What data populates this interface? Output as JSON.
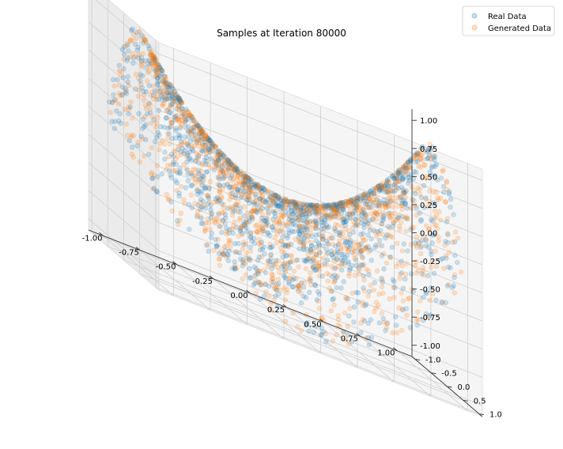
{
  "chart_data": {
    "type": "scatter",
    "title": "Samples at Iteration 80000",
    "xlabel": "",
    "ylabel": "",
    "zlabel": "",
    "xlim": [
      -1.1,
      1.1
    ],
    "ylim": [
      -1.1,
      1.1
    ],
    "zlim": [
      -1.1,
      1.1
    ],
    "x_ticks": [
      "-1.00",
      "-0.75",
      "-0.50",
      "-0.25",
      "0.00",
      "0.25",
      "0.50",
      "0.75",
      "1.00"
    ],
    "y_ticks": [
      "-1.0",
      "-0.5",
      "0.0",
      "0.5",
      "1.0"
    ],
    "z_ticks": [
      "-1.00",
      "-0.75",
      "-0.50",
      "-0.25",
      "0.00",
      "0.25",
      "0.50",
      "0.75",
      "1.00"
    ],
    "grid": true,
    "legend_position": "top-right",
    "series": [
      {
        "name": "Real Data",
        "color": "#1f77b4",
        "alpha": 0.2,
        "marker": "circle",
        "points": []
      },
      {
        "name": "Generated Data",
        "color": "#ff7f0e",
        "alpha": 0.2,
        "marker": "circle",
        "points": []
      }
    ]
  }
}
